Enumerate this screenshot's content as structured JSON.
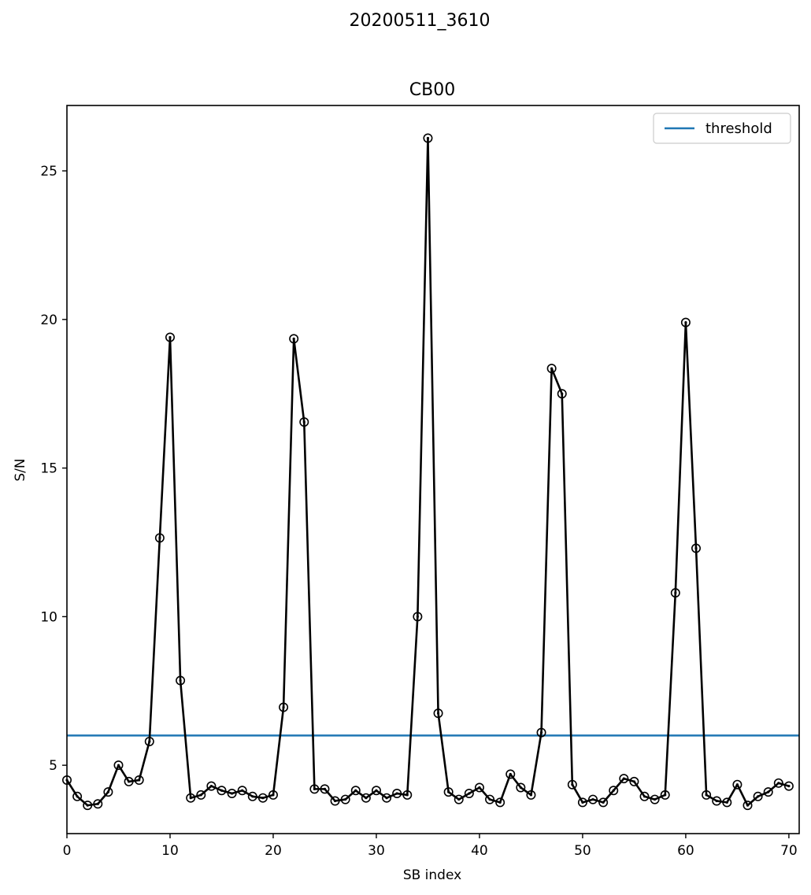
{
  "suptitle": "20200511_3610",
  "chart_data": {
    "type": "line",
    "title": "CB00",
    "xlabel": "SB index",
    "ylabel": "S/N",
    "xlim": [
      0,
      71
    ],
    "ylim": [
      2.7,
      27.2
    ],
    "xticks": [
      0,
      10,
      20,
      30,
      40,
      50,
      60,
      70
    ],
    "yticks": [
      5,
      10,
      15,
      20,
      25
    ],
    "grid": false,
    "legend_position": "top-right",
    "threshold": {
      "name": "threshold",
      "value": 6.0,
      "color": "#1f77b4"
    },
    "series": [
      {
        "color": "#000000",
        "marker": "circle",
        "x": [
          0,
          1,
          2,
          3,
          4,
          5,
          6,
          7,
          8,
          9,
          10,
          11,
          12,
          13,
          14,
          15,
          16,
          17,
          18,
          19,
          20,
          21,
          22,
          23,
          24,
          25,
          26,
          27,
          28,
          29,
          30,
          31,
          32,
          33,
          34,
          35,
          36,
          37,
          38,
          39,
          40,
          41,
          42,
          43,
          44,
          45,
          46,
          47,
          48,
          49,
          50,
          51,
          52,
          53,
          54,
          55,
          56,
          57,
          58,
          59,
          60,
          61,
          62,
          63,
          64,
          65,
          66,
          67,
          68,
          69,
          70
        ],
        "y": [
          4.5,
          3.95,
          3.65,
          3.7,
          4.1,
          5.0,
          4.45,
          4.5,
          5.8,
          12.65,
          19.4,
          7.85,
          3.9,
          4.0,
          4.3,
          4.15,
          4.05,
          4.15,
          3.95,
          3.9,
          4.0,
          6.95,
          19.35,
          16.55,
          4.2,
          4.2,
          3.8,
          3.85,
          4.15,
          3.9,
          4.15,
          3.9,
          4.05,
          4.0,
          10.0,
          26.1,
          6.75,
          4.1,
          3.85,
          4.05,
          4.25,
          3.85,
          3.75,
          4.7,
          4.25,
          4.0,
          6.1,
          18.35,
          17.5,
          4.35,
          3.75,
          3.85,
          3.75,
          4.15,
          4.55,
          4.45,
          3.95,
          3.85,
          4.0,
          10.8,
          19.9,
          12.3,
          4.0,
          3.8,
          3.75,
          4.35,
          3.65,
          3.95,
          4.1,
          4.4,
          4.3
        ]
      }
    ]
  }
}
